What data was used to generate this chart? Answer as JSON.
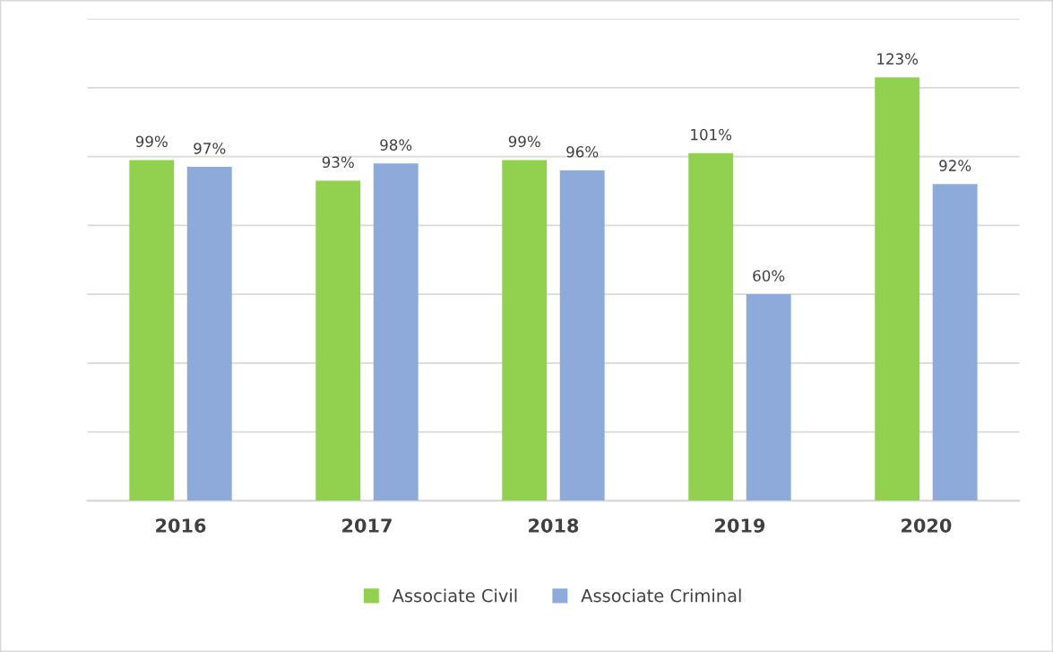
{
  "chart_data": {
    "type": "bar",
    "categories": [
      "2016",
      "2017",
      "2018",
      "2019",
      "2020"
    ],
    "series": [
      {
        "name": "Associate Civil",
        "color": "#92d050",
        "values": [
          99,
          93,
          99,
          101,
          123
        ],
        "value_labels": [
          "99%",
          "93%",
          "99%",
          "101%",
          "123%"
        ]
      },
      {
        "name": "Associate Criminal",
        "color": "#8eaadb",
        "values": [
          97,
          98,
          96,
          60,
          92
        ],
        "value_labels": [
          "97%",
          "98%",
          "96%",
          "60%",
          "92%"
        ]
      }
    ],
    "ylim": [
      0,
      140
    ],
    "yticks": [
      {
        "value": 0,
        "label": null
      },
      {
        "value": 20,
        "label": null
      },
      {
        "value": 40,
        "label": null
      },
      {
        "value": 60,
        "label": null
      },
      {
        "value": 80,
        "label": null
      },
      {
        "value": 100,
        "label": null
      },
      {
        "value": 120,
        "label": null
      },
      {
        "value": 140,
        "label": null
      }
    ],
    "grid": "y",
    "legend": "bottom",
    "tick_labels": "x"
  }
}
